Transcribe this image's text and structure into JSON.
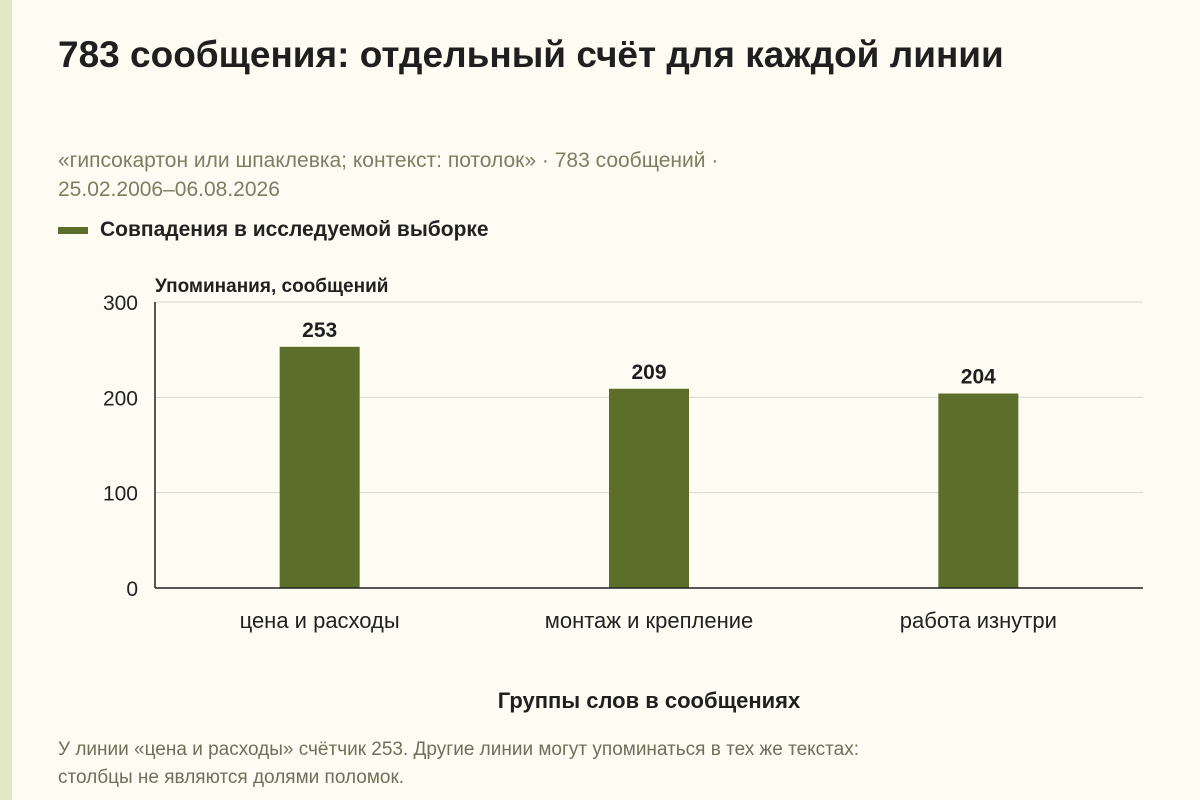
{
  "page": {
    "title": "783 сообщения: отдельный счёт для каждой линии",
    "subtitle_line1": "«гипсокартон или шпаклевка; контекст: потолок» · 783 сообщений ·",
    "subtitle_line2": "25.02.2006–06.08.2026",
    "footnote_line1": "У линии «цена и расходы» счётчик 253. Другие линии могут упоминаться в тех же текстах:",
    "footnote_line2": "столбцы не являются долями поломок."
  },
  "colors": {
    "bar": "#5d6e2b",
    "background": "#fdfcf2",
    "accent_strip": "#e3e8c4",
    "grid": "#d9d8cf",
    "axis": "#222222"
  },
  "chart_data": {
    "type": "bar",
    "categories": [
      "цена и расходы",
      "монтаж и крепление",
      "работа изнутри"
    ],
    "series": [
      {
        "name": "Совпадения в исследуемой выборке",
        "values": [
          253,
          209,
          204
        ]
      }
    ],
    "ylabel": "Упоминания, сообщений",
    "xlabel": "Группы слов в сообщениях",
    "ylim": [
      0,
      300
    ],
    "yticks": [
      0,
      100,
      200,
      300
    ],
    "grid": true,
    "legend_position": "top-left",
    "data_labels": true
  }
}
